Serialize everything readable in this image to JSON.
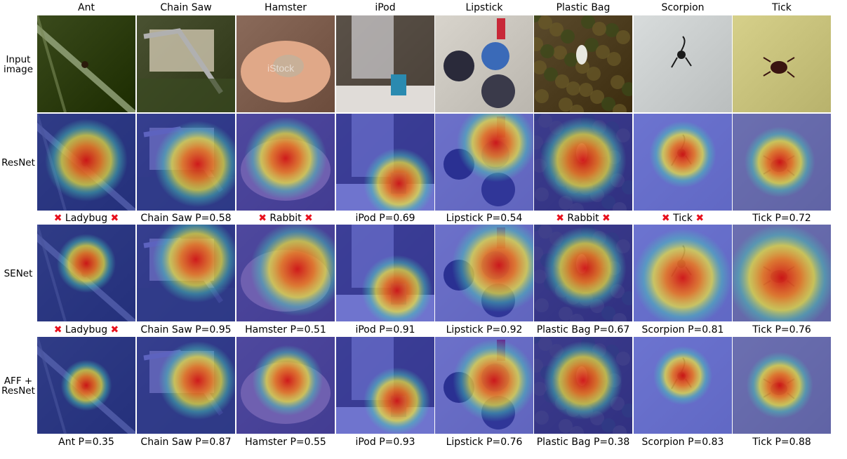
{
  "columns": [
    "Ant",
    "Chain Saw",
    "Hamster",
    "iPod",
    "Lipstick",
    "Plastic Bag",
    "Scorpion",
    "Tick"
  ],
  "rows": [
    {
      "label": [
        "Input",
        "image"
      ],
      "kind": "input",
      "predictions": []
    },
    {
      "label": [
        "ResNet"
      ],
      "kind": "heatmap",
      "predictions": [
        {
          "text": "Ladybug",
          "wrong": true
        },
        {
          "text": "Chain Saw P=0.58",
          "wrong": false
        },
        {
          "text": "Rabbit",
          "wrong": true
        },
        {
          "text": "iPod P=0.69",
          "wrong": false
        },
        {
          "text": "Lipstick P=0.54",
          "wrong": false
        },
        {
          "text": "Rabbit",
          "wrong": true
        },
        {
          "text": "Tick",
          "wrong": true
        },
        {
          "text": "Tick P=0.72",
          "wrong": false
        }
      ]
    },
    {
      "label": [
        "SENet"
      ],
      "kind": "heatmap",
      "predictions": [
        {
          "text": "Ladybug",
          "wrong": true
        },
        {
          "text": "Chain Saw P=0.95",
          "wrong": false
        },
        {
          "text": "Hamster P=0.51",
          "wrong": false
        },
        {
          "text": "iPod P=0.91",
          "wrong": false
        },
        {
          "text": "Lipstick P=0.92",
          "wrong": false
        },
        {
          "text": "Plastic Bag P=0.67",
          "wrong": false
        },
        {
          "text": "Scorpion P=0.81",
          "wrong": false
        },
        {
          "text": "Tick P=0.76",
          "wrong": false
        }
      ]
    },
    {
      "label": [
        "AFF +",
        "ResNet"
      ],
      "kind": "heatmap",
      "predictions": [
        {
          "text": "Ant P=0.35",
          "wrong": false
        },
        {
          "text": "Chain Saw P=0.87",
          "wrong": false
        },
        {
          "text": "Hamster P=0.55",
          "wrong": false
        },
        {
          "text": "iPod P=0.93",
          "wrong": false
        },
        {
          "text": "Lipstick P=0.76",
          "wrong": false
        },
        {
          "text": "Plastic Bag P=0.38",
          "wrong": false
        },
        {
          "text": "Scorpion P=0.83",
          "wrong": false
        },
        {
          "text": "Tick P=0.88",
          "wrong": false
        }
      ]
    }
  ],
  "wrong_marker": "✖",
  "colors": {
    "wrong_marker": "#e8101c",
    "heat_low": "#2a34c8",
    "heat_mid": "#f2e83a",
    "heat_high": "#d8140e"
  },
  "image_backgrounds": [
    "#3a4a1c",
    "#4a5232",
    "#8a6a5a",
    "#6a6258",
    "#d8d4cc",
    "#5a4a2c",
    "#d8dcdc",
    "#d6d08a"
  ],
  "watermark": "iStock"
}
